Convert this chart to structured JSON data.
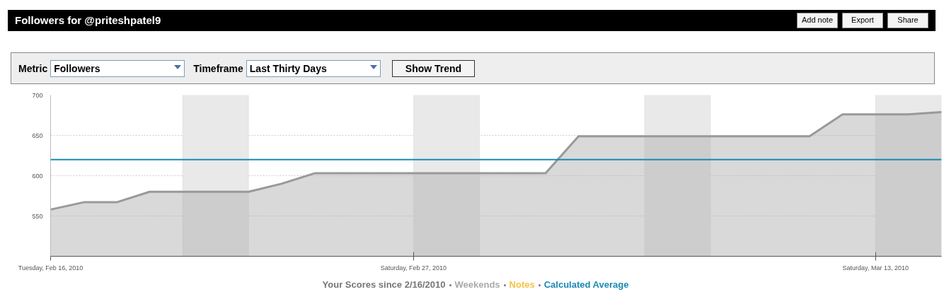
{
  "chart_data": {
    "type": "area",
    "title": "Followers for @priteshpatel9",
    "x": [
      "2010-02-16",
      "2010-02-17",
      "2010-02-18",
      "2010-02-19",
      "2010-02-20",
      "2010-02-21",
      "2010-02-22",
      "2010-02-23",
      "2010-02-24",
      "2010-02-25",
      "2010-02-26",
      "2010-02-27",
      "2010-02-28",
      "2010-03-01",
      "2010-03-02",
      "2010-03-03",
      "2010-03-04",
      "2010-03-05",
      "2010-03-06",
      "2010-03-07",
      "2010-03-08",
      "2010-03-09",
      "2010-03-10",
      "2010-03-11",
      "2010-03-12",
      "2010-03-13",
      "2010-03-14",
      "2010-03-15"
    ],
    "series": [
      {
        "color": "#999999",
        "values": [
          558,
          567,
          567,
          580,
          580,
          580,
          580,
          590,
          603,
          603,
          603,
          603,
          603,
          603,
          603,
          603,
          649,
          649,
          649,
          649,
          649,
          649,
          649,
          649,
          676,
          676,
          676,
          679
        ]
      }
    ],
    "xlim": [
      "2010-02-16",
      "2010-03-15"
    ],
    "xticks": [
      {
        "value": "2010-02-16",
        "label": "Tuesday, Feb 16, 2010"
      },
      {
        "value": "2010-02-27",
        "label": "Saturday, Feb 27, 2010"
      },
      {
        "value": "2010-03-13",
        "label": "Saturday, Mar 13, 2010"
      }
    ],
    "ylim": [
      500,
      700
    ],
    "yticks": [
      550,
      600,
      650,
      700
    ],
    "grid": "y",
    "ref_lines": [
      {
        "axis": "y",
        "value": 620,
        "label": "Calculated Average",
        "color": "#1a8ab5"
      }
    ],
    "bands": [
      {
        "axis": "x",
        "from": "2010-02-20",
        "to": "2010-02-22",
        "color": "#e9e9e9"
      },
      {
        "axis": "x",
        "from": "2010-02-27",
        "to": "2010-03-01",
        "color": "#e9e9e9"
      },
      {
        "axis": "x",
        "from": "2010-03-06",
        "to": "2010-03-08",
        "color": "#e9e9e9"
      },
      {
        "axis": "x",
        "from": "2010-03-13",
        "to": "2010-03-15",
        "color": "#e9e9e9"
      }
    ],
    "annotations": [
      "Add note",
      "Export",
      "Share",
      "Metric",
      "Followers",
      "Timeframe",
      "Last Thirty Days",
      "Show Trend",
      "Your Scores since 2/16/2010",
      "Weekends",
      "Notes"
    ]
  }
}
